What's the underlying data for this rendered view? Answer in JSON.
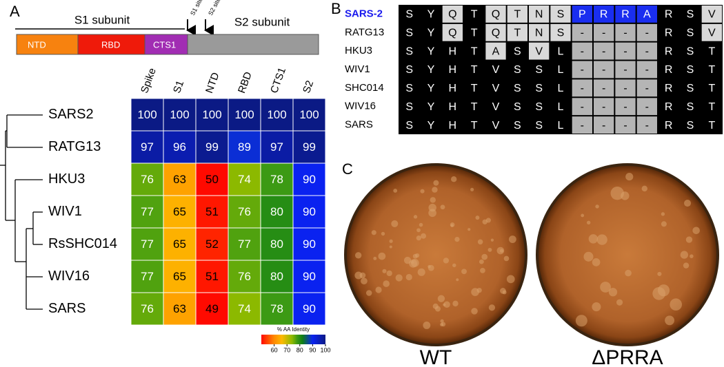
{
  "panel_a": {
    "label": "A",
    "domain_map": {
      "s1_label": "S1 subunit",
      "s1_site": "S1 site",
      "s2_site": "S2 site",
      "s2_label": "S2 subunit",
      "domains": [
        "NTD",
        "RBD",
        "CTS1"
      ]
    },
    "heatmap": {
      "columns": [
        "Spike",
        "S1",
        "NTD",
        "RBD",
        "CTS1",
        "S2"
      ],
      "rows": [
        {
          "name": "SARS2",
          "values": [
            100,
            100,
            100,
            100,
            100,
            100
          ]
        },
        {
          "name": "RATG13",
          "values": [
            97,
            96,
            99,
            89,
            97,
            99
          ]
        },
        {
          "name": "HKU3",
          "values": [
            76,
            63,
            50,
            74,
            78,
            90
          ]
        },
        {
          "name": "WIV1",
          "values": [
            77,
            65,
            51,
            76,
            80,
            90
          ]
        },
        {
          "name": "RsSHC014",
          "values": [
            77,
            65,
            52,
            77,
            80,
            90
          ]
        },
        {
          "name": "WIV16",
          "values": [
            77,
            65,
            51,
            76,
            80,
            90
          ]
        },
        {
          "name": "SARS",
          "values": [
            76,
            63,
            49,
            74,
            78,
            90
          ]
        }
      ],
      "colorbar": {
        "label": "% AA Identity",
        "range": [
          50,
          100
        ],
        "ticks": [
          60,
          70,
          80,
          90,
          100
        ],
        "stops": [
          [
            50,
            "#ff0a00"
          ],
          [
            60,
            "#ff8a00"
          ],
          [
            66,
            "#fdb900"
          ],
          [
            74,
            "#8cb900"
          ],
          [
            78,
            "#3c9a14"
          ],
          [
            82,
            "#0f7f14"
          ],
          [
            90,
            "#0a22f0"
          ],
          [
            100,
            "#0b1a85"
          ]
        ]
      }
    }
  },
  "panel_b": {
    "label": "B",
    "rows": [
      {
        "name": "SARS-2",
        "residues": [
          "S",
          "Y",
          "Q",
          "T",
          "Q",
          "T",
          "N",
          "S",
          "P",
          "R",
          "R",
          "A",
          "R",
          "S",
          "V"
        ]
      },
      {
        "name": "RATG13",
        "residues": [
          "S",
          "Y",
          "Q",
          "T",
          "Q",
          "T",
          "N",
          "S",
          "-",
          "-",
          "-",
          "-",
          "R",
          "S",
          "V"
        ]
      },
      {
        "name": "HKU3",
        "residues": [
          "S",
          "Y",
          "H",
          "T",
          "A",
          "S",
          "V",
          "L",
          "-",
          "-",
          "-",
          "-",
          "R",
          "S",
          "T"
        ]
      },
      {
        "name": "WIV1",
        "residues": [
          "S",
          "Y",
          "H",
          "T",
          "V",
          "S",
          "S",
          "L",
          "-",
          "-",
          "-",
          "-",
          "R",
          "S",
          "T"
        ]
      },
      {
        "name": "SHC014",
        "residues": [
          "S",
          "Y",
          "H",
          "T",
          "V",
          "S",
          "S",
          "L",
          "-",
          "-",
          "-",
          "-",
          "R",
          "S",
          "T"
        ]
      },
      {
        "name": "WIV16",
        "residues": [
          "S",
          "Y",
          "H",
          "T",
          "V",
          "S",
          "S",
          "L",
          "-",
          "-",
          "-",
          "-",
          "R",
          "S",
          "T"
        ]
      },
      {
        "name": "SARS",
        "residues": [
          "S",
          "Y",
          "H",
          "T",
          "V",
          "S",
          "S",
          "L",
          "-",
          "-",
          "-",
          "-",
          "R",
          "S",
          "T"
        ]
      }
    ]
  },
  "panel_c": {
    "label": "C",
    "plates": [
      "WT",
      "ΔPRRA"
    ]
  }
}
